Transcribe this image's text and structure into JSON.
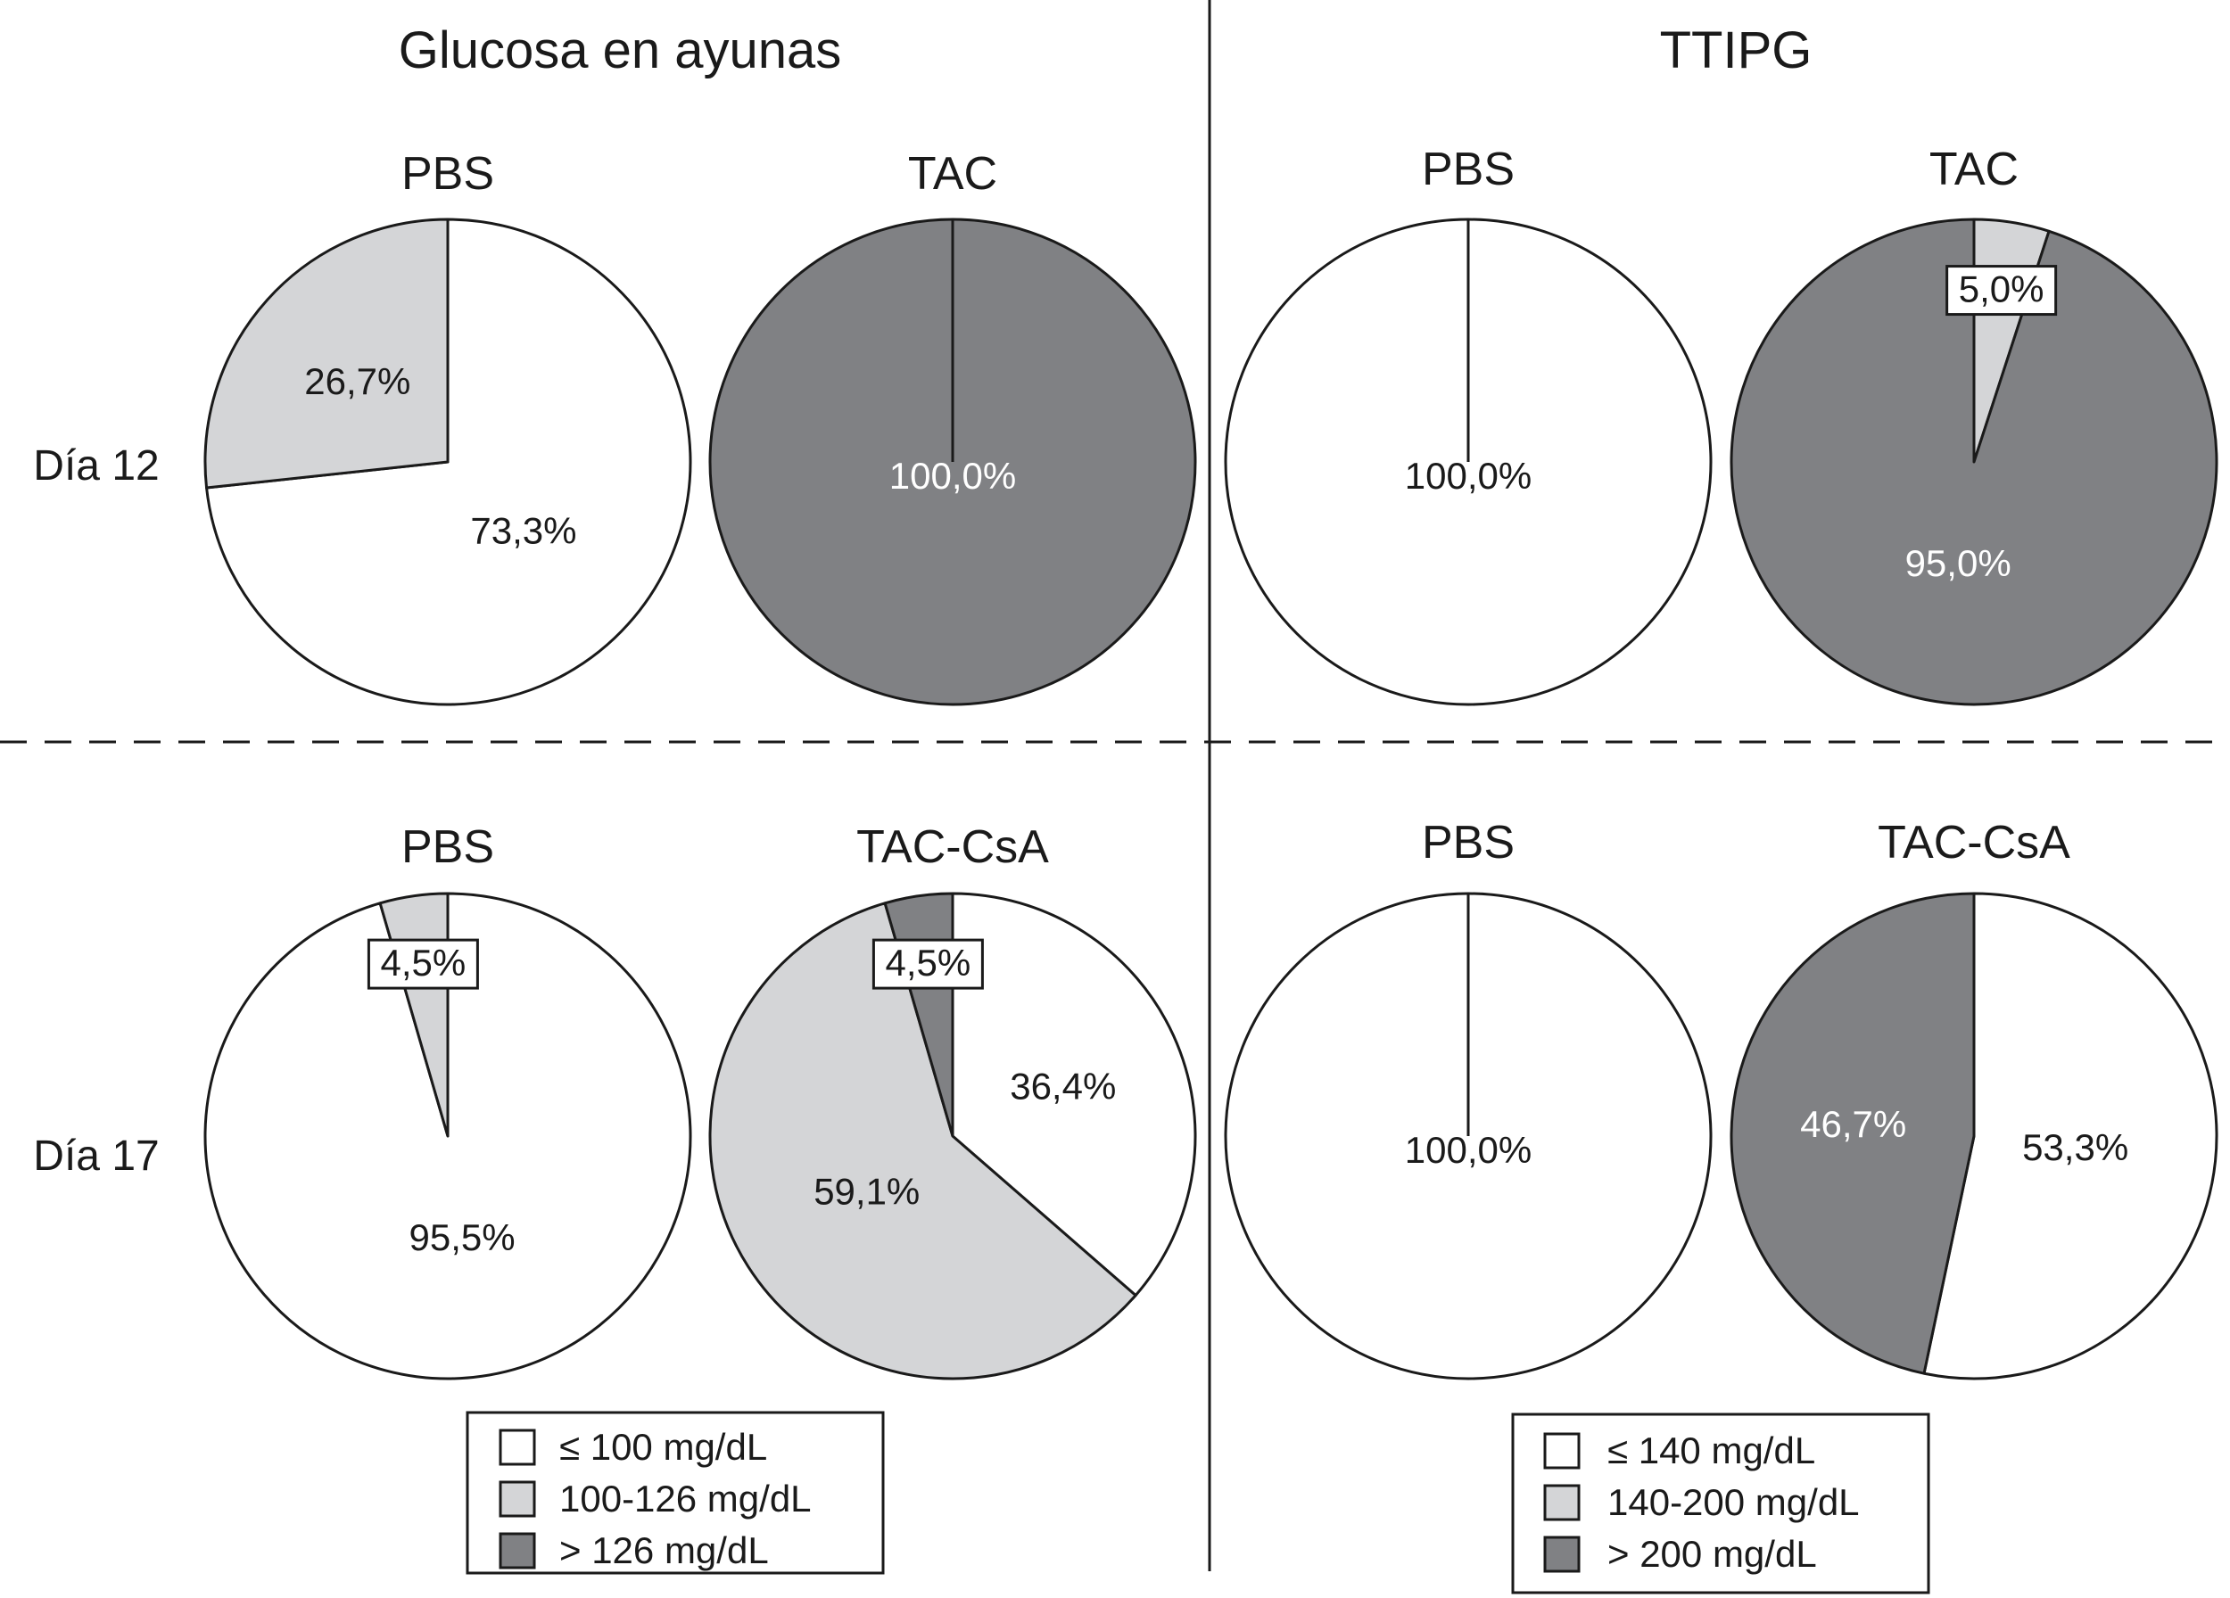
{
  "colors": {
    "white": "#ffffff",
    "light_gray": "#d4d5d7",
    "dark_gray": "#808184",
    "stroke": "#1a1a1a"
  },
  "panels": [
    {
      "title": "Glucosa en ayunas",
      "legend": [
        {
          "label": "≤ 100 mg/dL",
          "color": "white"
        },
        {
          "label": "100-126 mg/dL",
          "color": "light_gray"
        },
        {
          "label": "> 126 mg/dL",
          "color": "dark_gray"
        }
      ]
    },
    {
      "title": "TTIPG",
      "legend": [
        {
          "label": "≤ 140 mg/dL",
          "color": "white"
        },
        {
          "label": "140-200 mg/dL",
          "color": "light_gray"
        },
        {
          "label": "> 200 mg/dL",
          "color": "dark_gray"
        }
      ]
    }
  ],
  "rows": [
    "Día 12",
    "Día 17"
  ],
  "chart_data": [
    {
      "type": "pie",
      "panel": 0,
      "row": 0,
      "title": "PBS",
      "slices": [
        {
          "value": 73.3,
          "label": "73,3%",
          "color": "white"
        },
        {
          "value": 26.7,
          "label": "26,7%",
          "color": "light_gray"
        }
      ]
    },
    {
      "type": "pie",
      "panel": 0,
      "row": 0,
      "title": "TAC",
      "slices": [
        {
          "value": 100.0,
          "label": "100,0%",
          "color": "dark_gray"
        }
      ]
    },
    {
      "type": "pie",
      "panel": 1,
      "row": 0,
      "title": "PBS",
      "slices": [
        {
          "value": 100.0,
          "label": "100,0%",
          "color": "white"
        }
      ]
    },
    {
      "type": "pie",
      "panel": 1,
      "row": 0,
      "title": "TAC",
      "slices": [
        {
          "value": 5.0,
          "label": "5,0%",
          "color": "light_gray",
          "boxed": true
        },
        {
          "value": 95.0,
          "label": "95,0%",
          "color": "dark_gray"
        }
      ]
    },
    {
      "type": "pie",
      "panel": 0,
      "row": 1,
      "title": "PBS",
      "slices": [
        {
          "value": 95.5,
          "label": "95,5%",
          "color": "white"
        },
        {
          "value": 4.5,
          "label": "4,5%",
          "color": "light_gray",
          "boxed": true
        }
      ]
    },
    {
      "type": "pie",
      "panel": 0,
      "row": 1,
      "title": "TAC-CsA",
      "slices": [
        {
          "value": 36.4,
          "label": "36,4%",
          "color": "white"
        },
        {
          "value": 59.1,
          "label": "59,1%",
          "color": "light_gray"
        },
        {
          "value": 4.5,
          "label": "4,5%",
          "color": "dark_gray",
          "boxed": true
        }
      ]
    },
    {
      "type": "pie",
      "panel": 1,
      "row": 1,
      "title": "PBS",
      "slices": [
        {
          "value": 100.0,
          "label": "100,0%",
          "color": "white"
        }
      ]
    },
    {
      "type": "pie",
      "panel": 1,
      "row": 1,
      "title": "TAC-CsA",
      "slices": [
        {
          "value": 53.3,
          "label": "53,3%",
          "color": "white"
        },
        {
          "value": 46.7,
          "label": "46,7%",
          "color": "dark_gray"
        }
      ]
    }
  ]
}
